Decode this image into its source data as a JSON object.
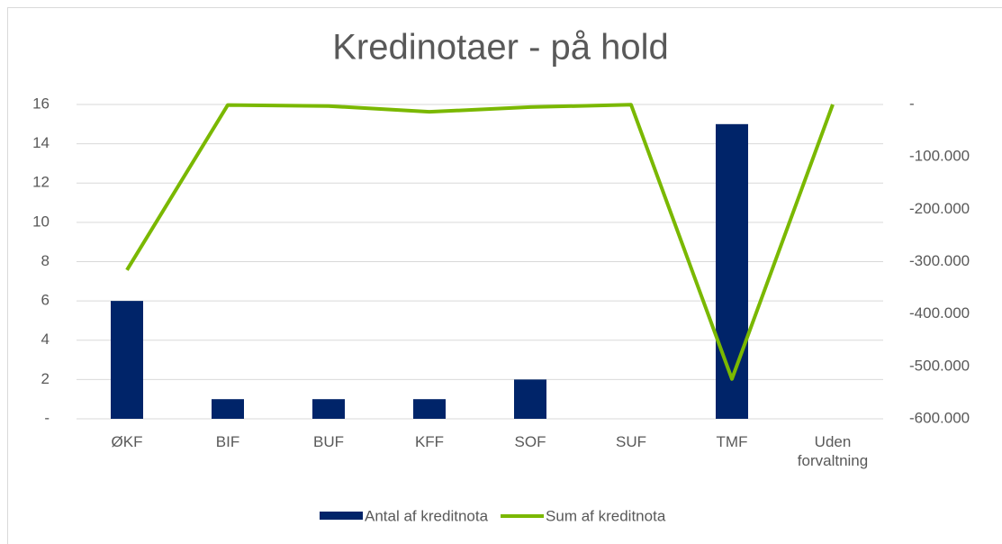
{
  "chart_data": {
    "type": "bar_line",
    "title": "Kredinotaer - på hold",
    "categories": [
      "ØKF",
      "BIF",
      "BUF",
      "KFF",
      "SOF",
      "SUF",
      "TMF",
      "Uden forvaltning"
    ],
    "series": [
      {
        "name": "Antal af kreditnota",
        "type": "bar",
        "color": "#002469",
        "values": [
          6,
          1,
          1,
          1,
          2,
          0,
          15,
          0
        ]
      },
      {
        "name": "Sum af kreditnota",
        "type": "line",
        "axis": "y2",
        "color": "#7ab800",
        "values": [
          -316000,
          -1000,
          -3000,
          -14000,
          -5000,
          -500,
          -524000,
          0
        ]
      }
    ],
    "ylim": [
      0,
      16
    ],
    "yticks": [
      {
        "value": 0,
        "label": "-"
      },
      2,
      4,
      6,
      8,
      10,
      12,
      14,
      16
    ],
    "y2lim": [
      -600000,
      0
    ],
    "y2ticks": [
      {
        "value": -600000,
        "label": "-600.000"
      },
      {
        "value": -500000,
        "label": "-500.000"
      },
      {
        "value": -400000,
        "label": "-400.000"
      },
      {
        "value": -300000,
        "label": "-300.000"
      },
      {
        "value": -200000,
        "label": "-200.000"
      },
      {
        "value": -100000,
        "label": "-100.000"
      },
      {
        "value": 0,
        "label": "-"
      }
    ],
    "grid": true,
    "legend": "bottom"
  }
}
